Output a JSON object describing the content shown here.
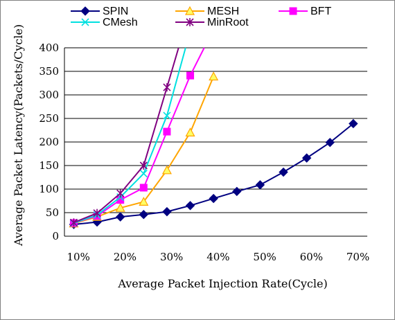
{
  "chart_data": {
    "type": "line",
    "title": "",
    "xlabel": "Average Packet Injection Rate(Cycle)",
    "ylabel": "Average Packet Latency(Packets/Cycle)",
    "ylim": [
      0,
      400
    ],
    "yticks": [
      "0",
      "50",
      "100",
      "150",
      "200",
      "250",
      "300",
      "350",
      "400"
    ],
    "xlim": [
      0.07,
      0.72
    ],
    "xticks": [
      {
        "x": 0.1,
        "label": "10%"
      },
      {
        "x": 0.2,
        "label": "20%"
      },
      {
        "x": 0.3,
        "label": "30%"
      },
      {
        "x": 0.4,
        "label": "40%"
      },
      {
        "x": 0.5,
        "label": "50%"
      },
      {
        "x": 0.6,
        "label": "60%"
      },
      {
        "x": 0.7,
        "label": "70%"
      }
    ],
    "grid": "horizontal",
    "legend_position": "top",
    "series": [
      {
        "name": "SPIN",
        "color": "#000080",
        "marker": "diamond",
        "points": [
          [
            0.09,
            25
          ],
          [
            0.14,
            30
          ],
          [
            0.19,
            41
          ],
          [
            0.24,
            46
          ],
          [
            0.29,
            52
          ],
          [
            0.34,
            65
          ],
          [
            0.39,
            80
          ],
          [
            0.44,
            95
          ],
          [
            0.49,
            109
          ],
          [
            0.54,
            136
          ],
          [
            0.59,
            166
          ],
          [
            0.64,
            199
          ],
          [
            0.69,
            239
          ]
        ]
      },
      {
        "name": "MESH",
        "color": "#FFA500",
        "marker": "triangle",
        "points": [
          [
            0.09,
            27
          ],
          [
            0.14,
            41
          ],
          [
            0.19,
            60
          ],
          [
            0.24,
            73
          ],
          [
            0.29,
            140
          ],
          [
            0.34,
            220
          ],
          [
            0.39,
            339
          ]
        ]
      },
      {
        "name": "BFT",
        "color": "#FF00FF",
        "marker": "square",
        "points": [
          [
            0.09,
            28
          ],
          [
            0.14,
            43
          ],
          [
            0.19,
            77
          ],
          [
            0.24,
            103
          ],
          [
            0.29,
            222
          ],
          [
            0.34,
            341
          ],
          [
            0.37,
            400
          ]
        ]
      },
      {
        "name": "CMesh",
        "color": "#00E0E0",
        "marker": "x",
        "points": [
          [
            0.09,
            28
          ],
          [
            0.14,
            45
          ],
          [
            0.19,
            83
          ],
          [
            0.24,
            133
          ],
          [
            0.29,
            256
          ],
          [
            0.33,
            400
          ]
        ]
      },
      {
        "name": "MinRoot",
        "color": "#800080",
        "marker": "star",
        "points": [
          [
            0.09,
            29
          ],
          [
            0.14,
            49
          ],
          [
            0.19,
            91
          ],
          [
            0.24,
            150
          ],
          [
            0.29,
            316
          ],
          [
            0.315,
            400
          ]
        ]
      }
    ]
  }
}
